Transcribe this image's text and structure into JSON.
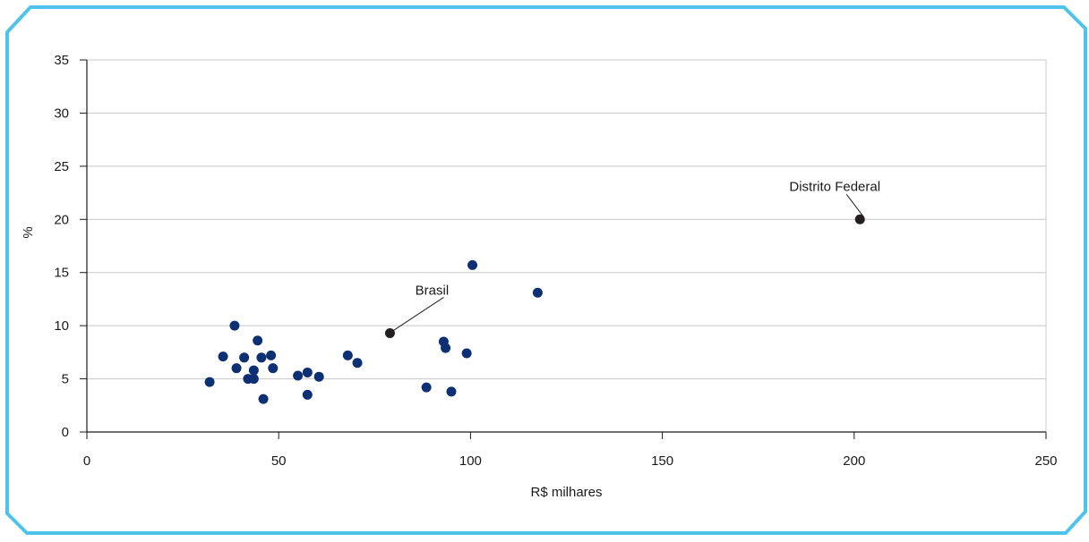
{
  "colors": {
    "frame": "#4fc3ea",
    "point": "#0d2f73",
    "highlight": "#231f20",
    "grid": "#c8c8c8",
    "axis": "#1a1a1a"
  },
  "chart_data": {
    "type": "scatter",
    "title": "",
    "xlabel": "R$ milhares",
    "ylabel": "%",
    "xlim": [
      0,
      250
    ],
    "ylim": [
      0,
      35
    ],
    "x_ticks": [
      0,
      50,
      100,
      150,
      200,
      250
    ],
    "y_ticks": [
      0,
      5,
      10,
      15,
      20,
      25,
      30,
      35
    ],
    "grid": "horizontal",
    "points": [
      {
        "x": 32,
        "y": 4.7
      },
      {
        "x": 35.5,
        "y": 7.1
      },
      {
        "x": 38.5,
        "y": 10.0
      },
      {
        "x": 39,
        "y": 6.0
      },
      {
        "x": 41,
        "y": 7.0
      },
      {
        "x": 42,
        "y": 5.0
      },
      {
        "x": 43.5,
        "y": 5.0
      },
      {
        "x": 43.5,
        "y": 5.8
      },
      {
        "x": 44.5,
        "y": 8.6
      },
      {
        "x": 45.5,
        "y": 7.0
      },
      {
        "x": 46,
        "y": 3.1
      },
      {
        "x": 48,
        "y": 7.2
      },
      {
        "x": 48.5,
        "y": 6.0
      },
      {
        "x": 55,
        "y": 5.3
      },
      {
        "x": 57.5,
        "y": 3.5
      },
      {
        "x": 57.5,
        "y": 5.6
      },
      {
        "x": 60.5,
        "y": 5.2
      },
      {
        "x": 68,
        "y": 7.2
      },
      {
        "x": 70.5,
        "y": 6.5
      },
      {
        "x": 88.5,
        "y": 4.2
      },
      {
        "x": 93,
        "y": 8.5
      },
      {
        "x": 93.5,
        "y": 7.9
      },
      {
        "x": 95,
        "y": 3.8
      },
      {
        "x": 99,
        "y": 7.4
      },
      {
        "x": 100.5,
        "y": 15.7
      },
      {
        "x": 117.5,
        "y": 13.1
      }
    ],
    "annotations": [
      {
        "label": "Brasil",
        "x": 79,
        "y": 9.3
      },
      {
        "label": "Distrito Federal",
        "x": 201.5,
        "y": 20.0
      }
    ]
  }
}
